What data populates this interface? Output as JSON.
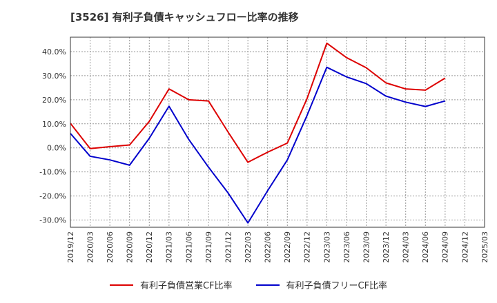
{
  "chart_data": {
    "type": "line",
    "title": "[3526]  有利子負債キャッシュフロー比率の推移",
    "xlabel": "",
    "ylabel": "",
    "x": [
      "2019/12",
      "2020/03",
      "2020/06",
      "2020/09",
      "2020/12",
      "2021/03",
      "2021/06",
      "2021/09",
      "2021/12",
      "2022/03",
      "2022/06",
      "2022/09",
      "2022/12",
      "2023/03",
      "2023/06",
      "2023/09",
      "2023/12",
      "2024/03",
      "2024/06",
      "2024/09",
      "2024/12",
      "2025/03"
    ],
    "ylim": [
      -33,
      46
    ],
    "yticks": [
      -30,
      -20,
      -10,
      0,
      10,
      20,
      30,
      40
    ],
    "ytick_labels": [
      "-30.0%",
      "-20.0%",
      "-10.0%",
      "0.0%",
      "10.0%",
      "20.0%",
      "30.0%",
      "40.0%"
    ],
    "grid": true,
    "legend_position": "bottom",
    "series": [
      {
        "name": "有利子負債営業CF比率",
        "color": "#dd0000",
        "values": [
          10.2,
          -0.3,
          0.5,
          1.2,
          11.0,
          24.5,
          20.0,
          19.5,
          6.5,
          -6.0,
          -1.8,
          2.0,
          20.5,
          43.5,
          37.5,
          33.3,
          27.0,
          24.5,
          24.0,
          29.0,
          null,
          null
        ]
      },
      {
        "name": "有利子負債フリーCF比率",
        "color": "#0000cc",
        "values": [
          6.0,
          -3.5,
          -5.0,
          -7.2,
          4.0,
          17.3,
          3.5,
          -8.0,
          -18.8,
          -31.2,
          -17.8,
          -5.0,
          13.5,
          33.5,
          29.5,
          26.7,
          21.5,
          19.0,
          17.2,
          19.5,
          null,
          null
        ]
      }
    ]
  }
}
